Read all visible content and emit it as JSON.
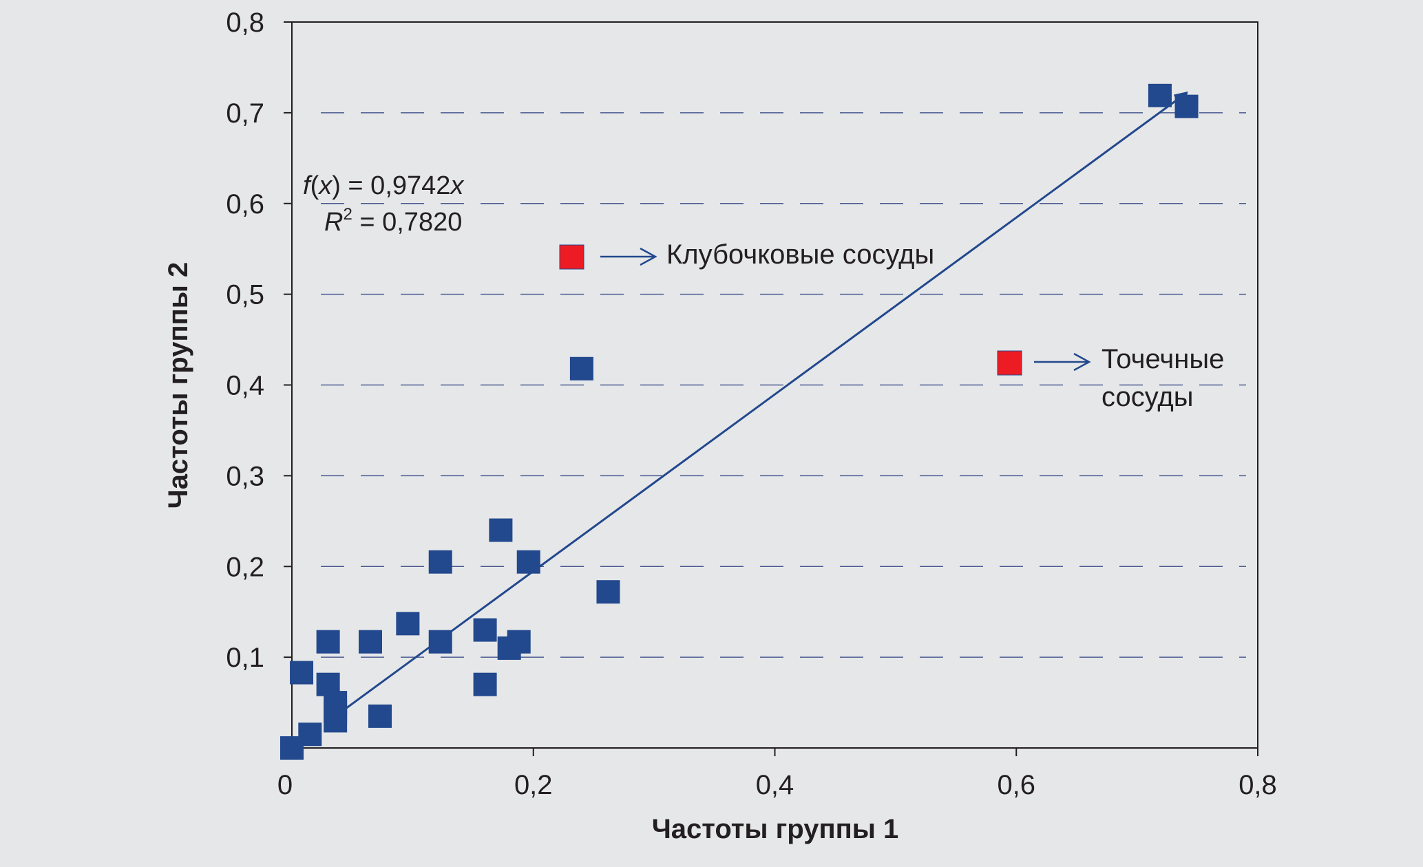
{
  "chart_data": {
    "type": "scatter",
    "xlabel": "Частоты группы 1",
    "ylabel": "Частоты группы 2",
    "xlim": [
      0,
      0.8
    ],
    "ylim": [
      0,
      0.8
    ],
    "x_ticks": [
      "0",
      "0,2",
      "0,4",
      "0,6",
      "0,8"
    ],
    "y_ticks": [
      "0,1",
      "0,2",
      "0,3",
      "0,4",
      "0,5",
      "0,6",
      "0,7",
      "0,8"
    ],
    "grid": "horizontal dashed",
    "points": [
      {
        "x": 0.0,
        "y": 0.0
      },
      {
        "x": 0.015,
        "y": 0.015
      },
      {
        "x": 0.008,
        "y": 0.083
      },
      {
        "x": 0.03,
        "y": 0.117
      },
      {
        "x": 0.03,
        "y": 0.07
      },
      {
        "x": 0.036,
        "y": 0.05
      },
      {
        "x": 0.036,
        "y": 0.04
      },
      {
        "x": 0.036,
        "y": 0.03
      },
      {
        "x": 0.065,
        "y": 0.117
      },
      {
        "x": 0.073,
        "y": 0.035
      },
      {
        "x": 0.096,
        "y": 0.137
      },
      {
        "x": 0.123,
        "y": 0.205
      },
      {
        "x": 0.123,
        "y": 0.117
      },
      {
        "x": 0.16,
        "y": 0.13
      },
      {
        "x": 0.16,
        "y": 0.07
      },
      {
        "x": 0.173,
        "y": 0.24
      },
      {
        "x": 0.18,
        "y": 0.11
      },
      {
        "x": 0.188,
        "y": 0.117
      },
      {
        "x": 0.196,
        "y": 0.205
      },
      {
        "x": 0.24,
        "y": 0.418
      },
      {
        "x": 0.262,
        "y": 0.172
      },
      {
        "x": 0.719,
        "y": 0.719
      },
      {
        "x": 0.741,
        "y": 0.707
      }
    ],
    "trendline": {
      "slope": 0.9742,
      "x_range": [
        0.036,
        0.741
      ],
      "equation_prefix": "f",
      "equation_var": "x",
      "equation_rhs": " = 0,9742",
      "r2_label": "R",
      "r2_sup": "2",
      "r2_value": " = 0,7820"
    },
    "annotations": [
      {
        "text": "Клубочковые сосуды",
        "marker_color": "#ed1c24",
        "anchor": {
          "x": 0.238,
          "y": 0.418
        }
      },
      {
        "text_lines": [
          "Точечные",
          "сосуды"
        ],
        "marker_color": "#ed1c24",
        "anchor": {
          "x": 0.741,
          "y": 0.707
        }
      }
    ],
    "colors": {
      "points": "#22488d",
      "line": "#22488d",
      "grid": "#4a5a90",
      "highlight": "#ed1c24"
    }
  }
}
